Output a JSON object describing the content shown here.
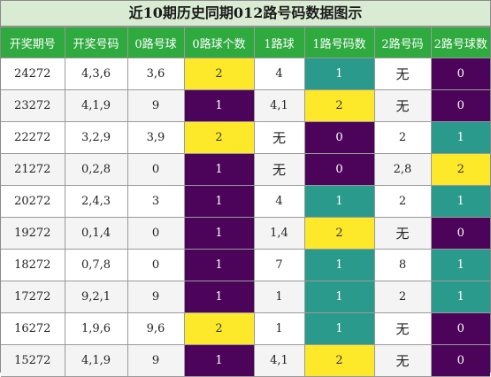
{
  "title": "近10期历史同期012路号码数据图示",
  "headers": [
    "开奖期号",
    "开奖号码",
    "0路号球",
    "0路球个数",
    "1路球",
    "1路号码数",
    "2路号码",
    "2路号球数"
  ],
  "colors": {
    "yellow": "#fde82a",
    "purple": "#4b0459",
    "teal": "#2a9a8c",
    "header_green": "#2eaa3f",
    "title_bg": "#d9ecd3"
  },
  "rows": [
    {
      "issue": "24272",
      "numbers": "4,3,6",
      "road0_balls": "3,6",
      "road0_count": "2",
      "road1_balls": "4",
      "road1_count": "1",
      "road2_balls": "无",
      "road2_count": "0"
    },
    {
      "issue": "23272",
      "numbers": "4,1,9",
      "road0_balls": "9",
      "road0_count": "1",
      "road1_balls": "4,1",
      "road1_count": "2",
      "road2_balls": "无",
      "road2_count": "0"
    },
    {
      "issue": "22272",
      "numbers": "3,2,9",
      "road0_balls": "3,9",
      "road0_count": "2",
      "road1_balls": "无",
      "road1_count": "0",
      "road2_balls": "2",
      "road2_count": "1"
    },
    {
      "issue": "21272",
      "numbers": "0,2,8",
      "road0_balls": "0",
      "road0_count": "1",
      "road1_balls": "无",
      "road1_count": "0",
      "road2_balls": "2,8",
      "road2_count": "2"
    },
    {
      "issue": "20272",
      "numbers": "2,4,3",
      "road0_balls": "3",
      "road0_count": "1",
      "road1_balls": "4",
      "road1_count": "1",
      "road2_balls": "2",
      "road2_count": "1"
    },
    {
      "issue": "19272",
      "numbers": "0,1,4",
      "road0_balls": "0",
      "road0_count": "1",
      "road1_balls": "1,4",
      "road1_count": "2",
      "road2_balls": "无",
      "road2_count": "0"
    },
    {
      "issue": "18272",
      "numbers": "0,7,8",
      "road0_balls": "0",
      "road0_count": "1",
      "road1_balls": "7",
      "road1_count": "1",
      "road2_balls": "8",
      "road2_count": "1"
    },
    {
      "issue": "17272",
      "numbers": "9,2,1",
      "road0_balls": "9",
      "road0_count": "1",
      "road1_balls": "1",
      "road1_count": "1",
      "road2_balls": "2",
      "road2_count": "1"
    },
    {
      "issue": "16272",
      "numbers": "1,9,6",
      "road0_balls": "9,6",
      "road0_count": "2",
      "road1_balls": "1",
      "road1_count": "1",
      "road2_balls": "无",
      "road2_count": "0"
    },
    {
      "issue": "15272",
      "numbers": "4,1,9",
      "road0_balls": "9",
      "road0_count": "1",
      "road1_balls": "4,1",
      "road1_count": "2",
      "road2_balls": "无",
      "road2_count": "0"
    }
  ]
}
